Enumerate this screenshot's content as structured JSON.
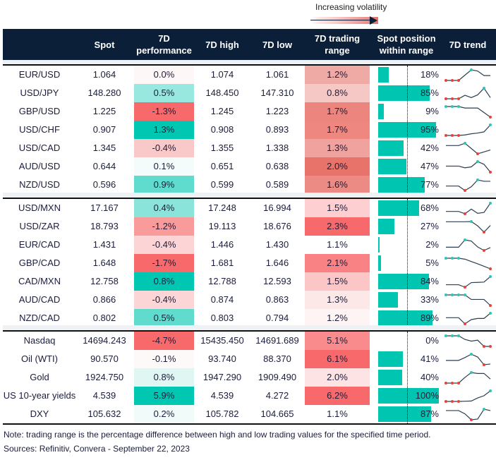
{
  "legend": {
    "label": "Increasing volatility"
  },
  "header": {
    "spot": "Spot",
    "perf_line1": "7D",
    "perf_line2": "performance",
    "high": "7D high",
    "low": "7D low",
    "range_line1": "7D trading",
    "range_line2": "range",
    "pos_line1": "Spot position",
    "pos_line2": "within range",
    "trend": "7D trend"
  },
  "colors": {
    "header_bg": "#0c1f38",
    "position_bar": "#00c5b0",
    "trend_line": "#2c3e50",
    "trend_high": "#2ec4b6",
    "trend_low": "#e8413a"
  },
  "groups": [
    {
      "rows": [
        {
          "pair": "EUR/USD",
          "spot": "1.064",
          "perf": "0.0%",
          "perf_color": "#fdf7f8",
          "high": "1.074",
          "low": "1.061",
          "range": "1.2%",
          "range_color": "#f0aaa6",
          "position": "18%",
          "position_value": 18,
          "trend": [
            0,
            0,
            0,
            0.5,
            1,
            0.89,
            0.46,
            0.46
          ]
        },
        {
          "pair": "USD/JPY",
          "spot": "148.280",
          "perf": "0.5%",
          "perf_color": "#98e8df",
          "high": "148.450",
          "low": "147.310",
          "range": "0.8%",
          "range_color": "#f5c8c5",
          "position": "85%",
          "position_value": 85,
          "trend": [
            0,
            0,
            0,
            0.33,
            0.11,
            0.37,
            1,
            0.11
          ]
        },
        {
          "pair": "GBP/USD",
          "spot": "1.225",
          "perf": "-1.3%",
          "perf_color": "#f8696b",
          "high": "1.245",
          "low": "1.223",
          "range": "1.7%",
          "range_color": "#ec857d",
          "position": "9%",
          "position_value": 9,
          "trend": [
            1,
            1,
            1,
            0.86,
            0.86,
            0.86,
            0.43,
            0
          ]
        },
        {
          "pair": "USD/CHF",
          "spot": "0.907",
          "perf": "1.3%",
          "perf_color": "#00c7b1",
          "high": "0.908",
          "low": "0.893",
          "range": "1.7%",
          "range_color": "#ed877f",
          "position": "95%",
          "position_value": 95,
          "trend": [
            0,
            0,
            0,
            0.05,
            0.16,
            0.23,
            0.34,
            1
          ]
        },
        {
          "pair": "USD/CAD",
          "spot": "1.345",
          "perf": "-0.4%",
          "perf_color": "#f9c9ca",
          "high": "1.355",
          "low": "1.338",
          "range": "1.3%",
          "range_color": "#f0a29e",
          "position": "42%",
          "position_value": 42,
          "trend": [
            0.78,
            0.78,
            0.78,
            1,
            0.5,
            0,
            0.18,
            0.36
          ]
        },
        {
          "pair": "AUD/USD",
          "spot": "0.644",
          "perf": "0.1%",
          "perf_color": "#f4fcfb",
          "high": "0.651",
          "low": "0.638",
          "range": "2.0%",
          "range_color": "#e8736a",
          "position": "47%",
          "position_value": 47,
          "trend": [
            0.57,
            0.57,
            0.57,
            0.41,
            0.5,
            1,
            0.74,
            0
          ]
        },
        {
          "pair": "NZD/USD",
          "spot": "0.596",
          "perf": "0.9%",
          "perf_color": "#5fdccd",
          "high": "0.599",
          "low": "0.589",
          "range": "1.6%",
          "range_color": "#ec8b83",
          "position": "77%",
          "position_value": 77,
          "trend": [
            0.42,
            0.42,
            0.42,
            0,
            0.36,
            1,
            0.87,
            0.87
          ]
        }
      ]
    },
    {
      "rows": [
        {
          "pair": "USD/MXN",
          "spot": "17.167",
          "perf": "0.4%",
          "perf_color": "#8be4da",
          "high": "17.248",
          "low": "16.994",
          "range": "1.5%",
          "range_color": "#fdcfd0",
          "position": "68%",
          "position_value": 68,
          "trend": [
            0.22,
            0.22,
            0.22,
            0,
            0.44,
            0.04,
            0.13,
            1
          ]
        },
        {
          "pair": "USD/ZAR",
          "spot": "18.793",
          "perf": "-1.2%",
          "perf_color": "#f99a9b",
          "high": "19.113",
          "low": "18.676",
          "range": "2.3%",
          "range_color": "#f8696b",
          "position": "27%",
          "position_value": 27,
          "trend": [
            0.98,
            0.98,
            0.98,
            0.98,
            1,
            0.59,
            0,
            0.63
          ]
        },
        {
          "pair": "EUR/CAD",
          "spot": "1.431",
          "perf": "-0.4%",
          "perf_color": "#fcd4d5",
          "high": "1.446",
          "low": "1.430",
          "range": "1.1%",
          "range_color": "#ffffff",
          "position": "2%",
          "position_value": 2,
          "trend": [
            0.31,
            0.31,
            0.31,
            1,
            0.89,
            0.33,
            0,
            0.27
          ]
        },
        {
          "pair": "GBP/CAD",
          "spot": "1.648",
          "perf": "-1.7%",
          "perf_color": "#f8696b",
          "high": "1.681",
          "low": "1.646",
          "range": "2.1%",
          "range_color": "#f98384",
          "position": "5%",
          "position_value": 5,
          "trend": [
            1,
            1,
            1,
            0.91,
            0.69,
            0.47,
            0.24,
            0
          ]
        },
        {
          "pair": "CAD/MXN",
          "spot": "12.758",
          "perf": "0.8%",
          "perf_color": "#00c7b1",
          "high": "12.788",
          "low": "12.593",
          "range": "1.5%",
          "range_color": "#fcc6c7",
          "position": "84%",
          "position_value": 84,
          "trend": [
            0.23,
            0.23,
            0.23,
            0,
            0.43,
            0.45,
            0.48,
            1
          ]
        },
        {
          "pair": "AUD/CAD",
          "spot": "0.866",
          "perf": "-0.4%",
          "perf_color": "#fcd6d7",
          "high": "0.874",
          "low": "0.863",
          "range": "1.3%",
          "range_color": "#fde8e8",
          "position": "33%",
          "position_value": 33,
          "trend": [
            1,
            1,
            1,
            1,
            0.57,
            0.57,
            0.57,
            0
          ]
        },
        {
          "pair": "NZD/CAD",
          "spot": "0.802",
          "perf": "0.5%",
          "perf_color": "#5fdccd",
          "high": "0.803",
          "low": "0.794",
          "range": "1.2%",
          "range_color": "#fff4f4",
          "position": "89%",
          "position_value": 89,
          "trend": [
            0.58,
            0.58,
            0.58,
            0,
            0.4,
            0.51,
            0.51,
            1
          ]
        }
      ]
    },
    {
      "rows": [
        {
          "pair": "Nasdaq",
          "spot": "14694.243",
          "perf": "-4.7%",
          "perf_color": "#f8696b",
          "high": "15435.450",
          "low": "14691.689",
          "range": "5.1%",
          "range_color": "#f98b8c",
          "position": "0%",
          "position_value": 0,
          "trend": [
            1,
            1,
            1,
            0.66,
            0.5,
            0.59,
            0,
            0
          ]
        },
        {
          "pair": "Oil (WTI)",
          "spot": "90.570",
          "perf": "-0.1%",
          "perf_color": "#fdf9f9",
          "high": "93.740",
          "low": "88.370",
          "range": "6.1%",
          "range_color": "#f8696b",
          "position": "41%",
          "position_value": 41,
          "trend": [
            0.41,
            0.41,
            0.41,
            0.68,
            1,
            0.73,
            0,
            0.07
          ]
        },
        {
          "pair": "Gold",
          "spot": "1924.750",
          "perf": "0.8%",
          "perf_color": "#dff6f3",
          "high": "1947.290",
          "low": "1909.490",
          "range": "2.0%",
          "range_color": "#fde3e3",
          "position": "40%",
          "position_value": 40,
          "trend": [
            0,
            0,
            0,
            0.54,
            1,
            0.91,
            0.91,
            0.39
          ]
        },
        {
          "pair": "US 10-year yields",
          "spot": "4.539",
          "perf": "5.9%",
          "perf_color": "#00c7b1",
          "high": "4.539",
          "low": "4.272",
          "range": "6.2%",
          "range_color": "#f8696b",
          "position": "100%",
          "position_value": 100,
          "trend": [
            0,
            0,
            0,
            0.02,
            0.04,
            0.33,
            0.54,
            1
          ]
        },
        {
          "pair": "DXY",
          "spot": "105.632",
          "perf": "0.2%",
          "perf_color": "#f0fbfa",
          "high": "105.782",
          "low": "104.665",
          "range": "1.1%",
          "range_color": "#ffffff",
          "position": "87%",
          "position_value": 87,
          "trend": [
            0.87,
            0.87,
            0.87,
            0.56,
            0,
            0.07,
            1,
            0.87
          ]
        }
      ]
    }
  ],
  "footer": {
    "note": "Note: trading range is the percentage difference between high and low trading values for the specified time period.",
    "sources": "Sources: Refinitiv, Convera - September 22, 2023"
  }
}
